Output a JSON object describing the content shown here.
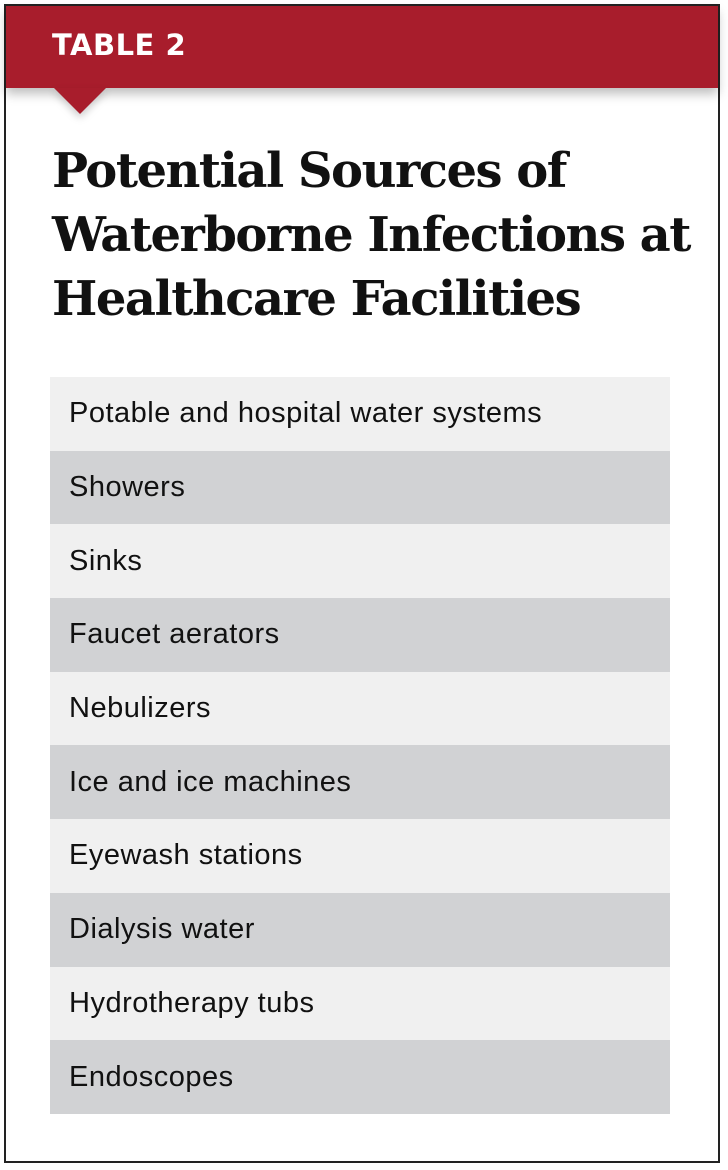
{
  "banner": {
    "label": "TABLE 2",
    "color": "#a81d2c"
  },
  "title": "Potential Sources of Waterborne Infections at Healthcare Facilities",
  "rows": [
    "Potable and hospital water systems",
    "Showers",
    "Sinks",
    "Faucet aerators",
    "Nebulizers",
    "Ice and ice machines",
    "Eyewash stations",
    "Dialysis water",
    "Hydrotherapy tubs",
    "Endoscopes"
  ]
}
